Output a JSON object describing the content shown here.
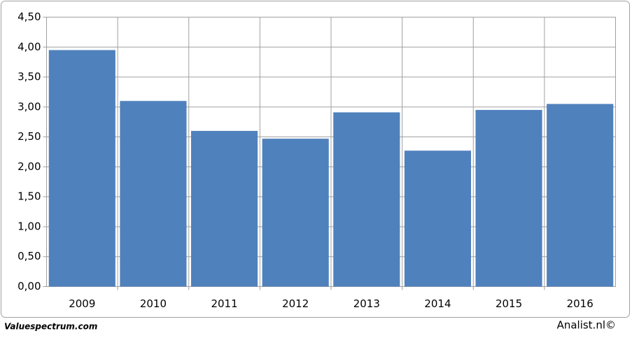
{
  "chart_data": {
    "type": "bar",
    "categories": [
      "2009",
      "2010",
      "2011",
      "2012",
      "2013",
      "2014",
      "2015",
      "2016"
    ],
    "values": [
      3.95,
      3.1,
      2.6,
      2.47,
      2.91,
      2.27,
      2.95,
      3.05
    ],
    "color": "#4f81bd",
    "ylim": [
      0,
      4.5
    ],
    "yticks": [
      {
        "value": 0,
        "label": "0,00"
      },
      {
        "value": 0.5,
        "label": "0,50"
      },
      {
        "value": 1,
        "label": "1,00"
      },
      {
        "value": 1.5,
        "label": "1,50"
      },
      {
        "value": 2,
        "label": "2,00"
      },
      {
        "value": 2.5,
        "label": "2,50"
      },
      {
        "value": 3,
        "label": "3,00"
      },
      {
        "value": 3.5,
        "label": "3,50"
      },
      {
        "value": 4,
        "label": "4,00"
      },
      {
        "value": 4.5,
        "label": "4,50"
      }
    ],
    "grid": true
  },
  "footer": {
    "left": "Valuespectrum.com",
    "right": "Analist.nl©"
  }
}
